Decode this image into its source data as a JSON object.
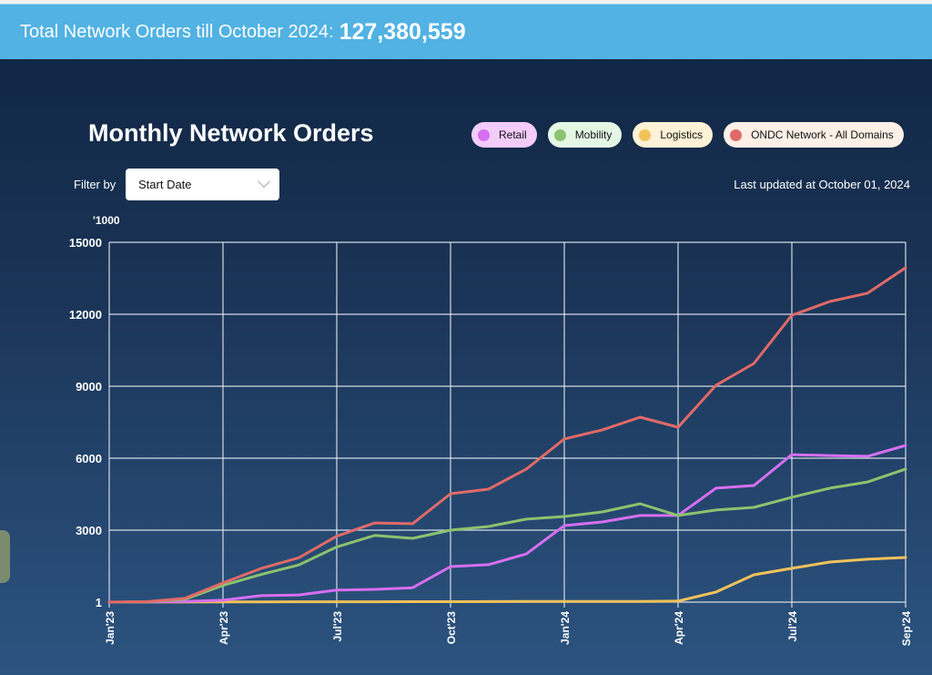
{
  "header": {
    "label": "Total Network Orders till October 2024:",
    "total": "127,380,559"
  },
  "title": "Monthly Network Orders",
  "legend": [
    {
      "name": "Retail",
      "color": "#d66ff0",
      "bg": "#f3ccf9"
    },
    {
      "name": "Mobility",
      "color": "#8dc26f",
      "bg": "#e4f7e5"
    },
    {
      "name": "Logistics",
      "color": "#f2c25a",
      "bg": "#fdf1d6"
    },
    {
      "name": "ONDC Network - All Domains",
      "color": "#e06a68",
      "bg": "#fdf0e6"
    }
  ],
  "filter": {
    "label": "Filter by",
    "selected": "Start Date"
  },
  "last_updated": "Last updated at October 01, 2024",
  "chart_data": {
    "type": "line",
    "title": "Monthly Network Orders",
    "ylabel": "'1000",
    "xlabel": "",
    "ylim": [
      1,
      15000
    ],
    "yticks": [
      1,
      3000,
      6000,
      9000,
      12000,
      15000
    ],
    "x": [
      "Jan'23",
      "Feb'23",
      "Mar'23",
      "Apr'23",
      "May'23",
      "Jun'23",
      "Jul'23",
      "Aug'23",
      "Sep'23",
      "Oct'23",
      "Nov'23",
      "Dec'23",
      "Jan'24",
      "Feb'24",
      "Mar'24",
      "Apr'24",
      "May'24",
      "Jun'24",
      "Jul'24",
      "Aug'24",
      "Sep'24",
      "Sep'24"
    ],
    "xtick_labels": [
      {
        "index": 0,
        "label": "Jan'23"
      },
      {
        "index": 3,
        "label": "Apr'23"
      },
      {
        "index": 6,
        "label": "Jul'23"
      },
      {
        "index": 9,
        "label": "Oct'23"
      },
      {
        "index": 12,
        "label": "Jan'24"
      },
      {
        "index": 15,
        "label": "Apr'24"
      },
      {
        "index": 18,
        "label": "Jul'24"
      },
      {
        "index": 21,
        "label": "Sep'24"
      }
    ],
    "grid": true,
    "legend_position": "top-right",
    "series": [
      {
        "name": "Retail",
        "color": "#d66ff0",
        "values": [
          1,
          5,
          30,
          80,
          270,
          300,
          500,
          530,
          600,
          1480,
          1560,
          2010,
          3190,
          3340,
          3610,
          3610,
          4750,
          4860,
          6150,
          6110,
          6080,
          6530
        ]
      },
      {
        "name": "Mobility",
        "color": "#8dc26f",
        "values": [
          1,
          10,
          120,
          700,
          1150,
          1550,
          2300,
          2780,
          2660,
          3000,
          3150,
          3460,
          3570,
          3760,
          4100,
          3610,
          3840,
          3950,
          4370,
          4750,
          5010,
          5550
        ]
      },
      {
        "name": "Logistics",
        "color": "#f2c25a",
        "values": [
          1,
          2,
          5,
          10,
          12,
          14,
          15,
          16,
          18,
          20,
          22,
          25,
          28,
          30,
          32,
          40,
          420,
          1140,
          1410,
          1670,
          1790,
          1860
        ]
      },
      {
        "name": "ONDC Network - All Domains",
        "color": "#e06a68",
        "values": [
          1,
          20,
          160,
          800,
          1400,
          1850,
          2750,
          3300,
          3270,
          4520,
          4710,
          5550,
          6800,
          7180,
          7710,
          7290,
          9040,
          9950,
          11960,
          12530,
          12880,
          13940
        ]
      }
    ]
  }
}
